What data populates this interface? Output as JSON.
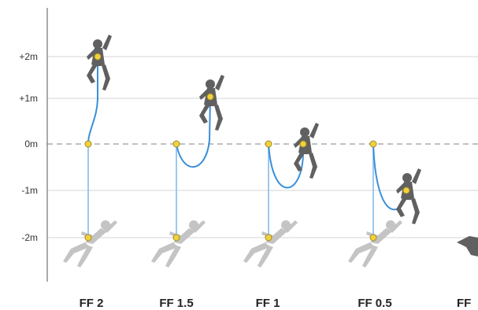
{
  "y_levels": [
    {
      "label": "+2m",
      "value": 2
    },
    {
      "label": "+1m",
      "value": 1
    },
    {
      "label": "0m",
      "value": 0
    },
    {
      "label": "-1m",
      "value": -1
    },
    {
      "label": "-2m",
      "value": -2
    }
  ],
  "fall_factors": [
    {
      "label": "FF 2"
    },
    {
      "label": "FF 1.5"
    },
    {
      "label": "FF 1"
    },
    {
      "label": "FF 0.5"
    },
    {
      "label": "FF"
    }
  ],
  "colors": {
    "rope": "#3b8fd9",
    "rope_light": "#9cc8ef",
    "point": "#f2d23a",
    "point_stroke": "#9c8a2a",
    "climber": "#606060",
    "falling_climber": "#c4c4c4",
    "grid": "#d6d6d6",
    "zero_line": "#9a9a9a",
    "axis": "#555555"
  }
}
